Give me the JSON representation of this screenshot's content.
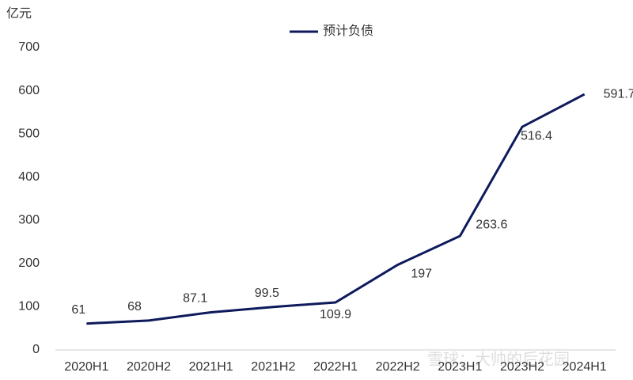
{
  "chart_data": {
    "type": "line",
    "y_unit": "亿元",
    "categories": [
      "2020H1",
      "2020H2",
      "2021H1",
      "2021H2",
      "2022H1",
      "2022H2",
      "2023H1",
      "2023H2",
      "2024H1"
    ],
    "series": [
      {
        "name": "预计负债",
        "color": "#0d1a5c",
        "values": [
          61,
          68,
          87.1,
          99.5,
          109.9,
          197,
          263.6,
          516.4,
          591.7
        ]
      }
    ],
    "ylim": [
      0,
      700
    ],
    "yticks": [
      0,
      100,
      200,
      300,
      400,
      500,
      600,
      700
    ],
    "grid": false,
    "legend": "top",
    "watermark": "雪球：大帅的后花园"
  }
}
